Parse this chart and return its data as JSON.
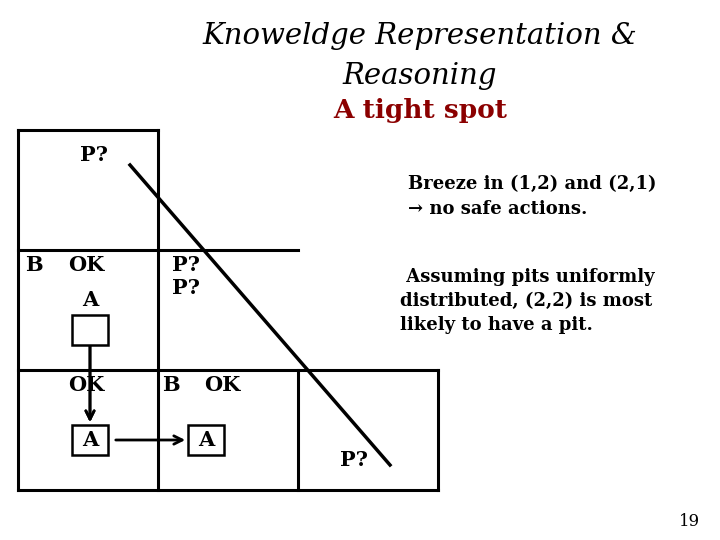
{
  "title_line1": "Knoweldge Representation &",
  "title_line2": "Reasoning",
  "subtitle": "A tight spot",
  "subtitle_color": "#8B0000",
  "text1_line1": "Breeze in (1,2) and (2,1)",
  "text1_line2": "→ no safe actions.",
  "text2_line1": " Assuming pits uniformly",
  "text2_line2": "distributed, (2,2) is most",
  "text2_line3": "likely to have a pit.",
  "page_number": "19",
  "bg_color": "#ffffff",
  "grid_color": "#000000",
  "title_fontsize": 21,
  "subtitle_fontsize": 19,
  "body_fontsize": 13,
  "label_fontsize": 15
}
